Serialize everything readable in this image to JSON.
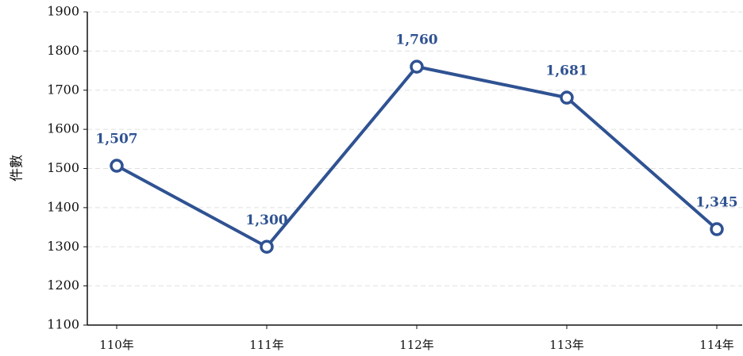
{
  "chart_data": {
    "type": "line",
    "ylabel": "件數",
    "categories": [
      "110年",
      "111年",
      "112年",
      "113年",
      "114年"
    ],
    "series": [
      {
        "color": "#2f5292",
        "values": [
          1507,
          1300,
          1760,
          1681,
          1345
        ],
        "value_labels": [
          "1,507",
          "1,300",
          "1,760",
          "1,681",
          "1,345"
        ]
      }
    ],
    "ylim": [
      1100,
      1900
    ],
    "yticks": [
      1100,
      1200,
      1300,
      1400,
      1500,
      1600,
      1700,
      1800,
      1900
    ],
    "grid": true
  }
}
